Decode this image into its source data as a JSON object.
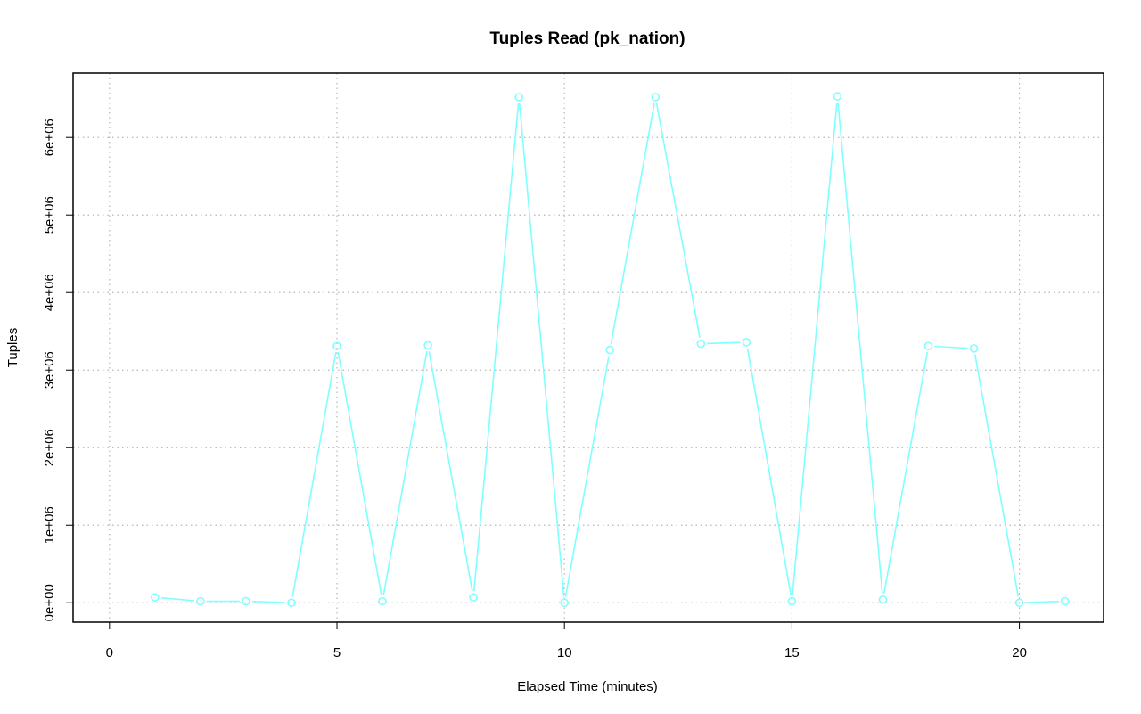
{
  "chart_data": {
    "type": "line",
    "title": "Tuples Read (pk_nation)",
    "xlabel": "Elapsed Time (minutes)",
    "ylabel": "Tuples",
    "xlim": [
      -0.8,
      21.85
    ],
    "ylim": [
      -250000,
      6830000
    ],
    "x_ticks": [
      0,
      5,
      10,
      15,
      20
    ],
    "x_tick_labels": [
      "0",
      "5",
      "10",
      "15",
      "20"
    ],
    "y_ticks": [
      0,
      1000000,
      2000000,
      3000000,
      4000000,
      5000000,
      6000000
    ],
    "y_tick_labels": [
      "0e+00",
      "1e+06",
      "2e+06",
      "3e+06",
      "4e+06",
      "5e+06",
      "6e+06"
    ],
    "grid": true,
    "series": [
      {
        "color": "#7fffff",
        "marker": "open-circle",
        "x": [
          1,
          2,
          3,
          4,
          5,
          6,
          7,
          8,
          9,
          10,
          11,
          12,
          13,
          14,
          15,
          16,
          17,
          18,
          19,
          20,
          21
        ],
        "y": [
          70000,
          20000,
          20000,
          0,
          3310000,
          20000,
          3320000,
          70000,
          6520000,
          0,
          3260000,
          6520000,
          3340000,
          3360000,
          20000,
          6530000,
          40000,
          3310000,
          3280000,
          0,
          20000
        ]
      }
    ]
  }
}
